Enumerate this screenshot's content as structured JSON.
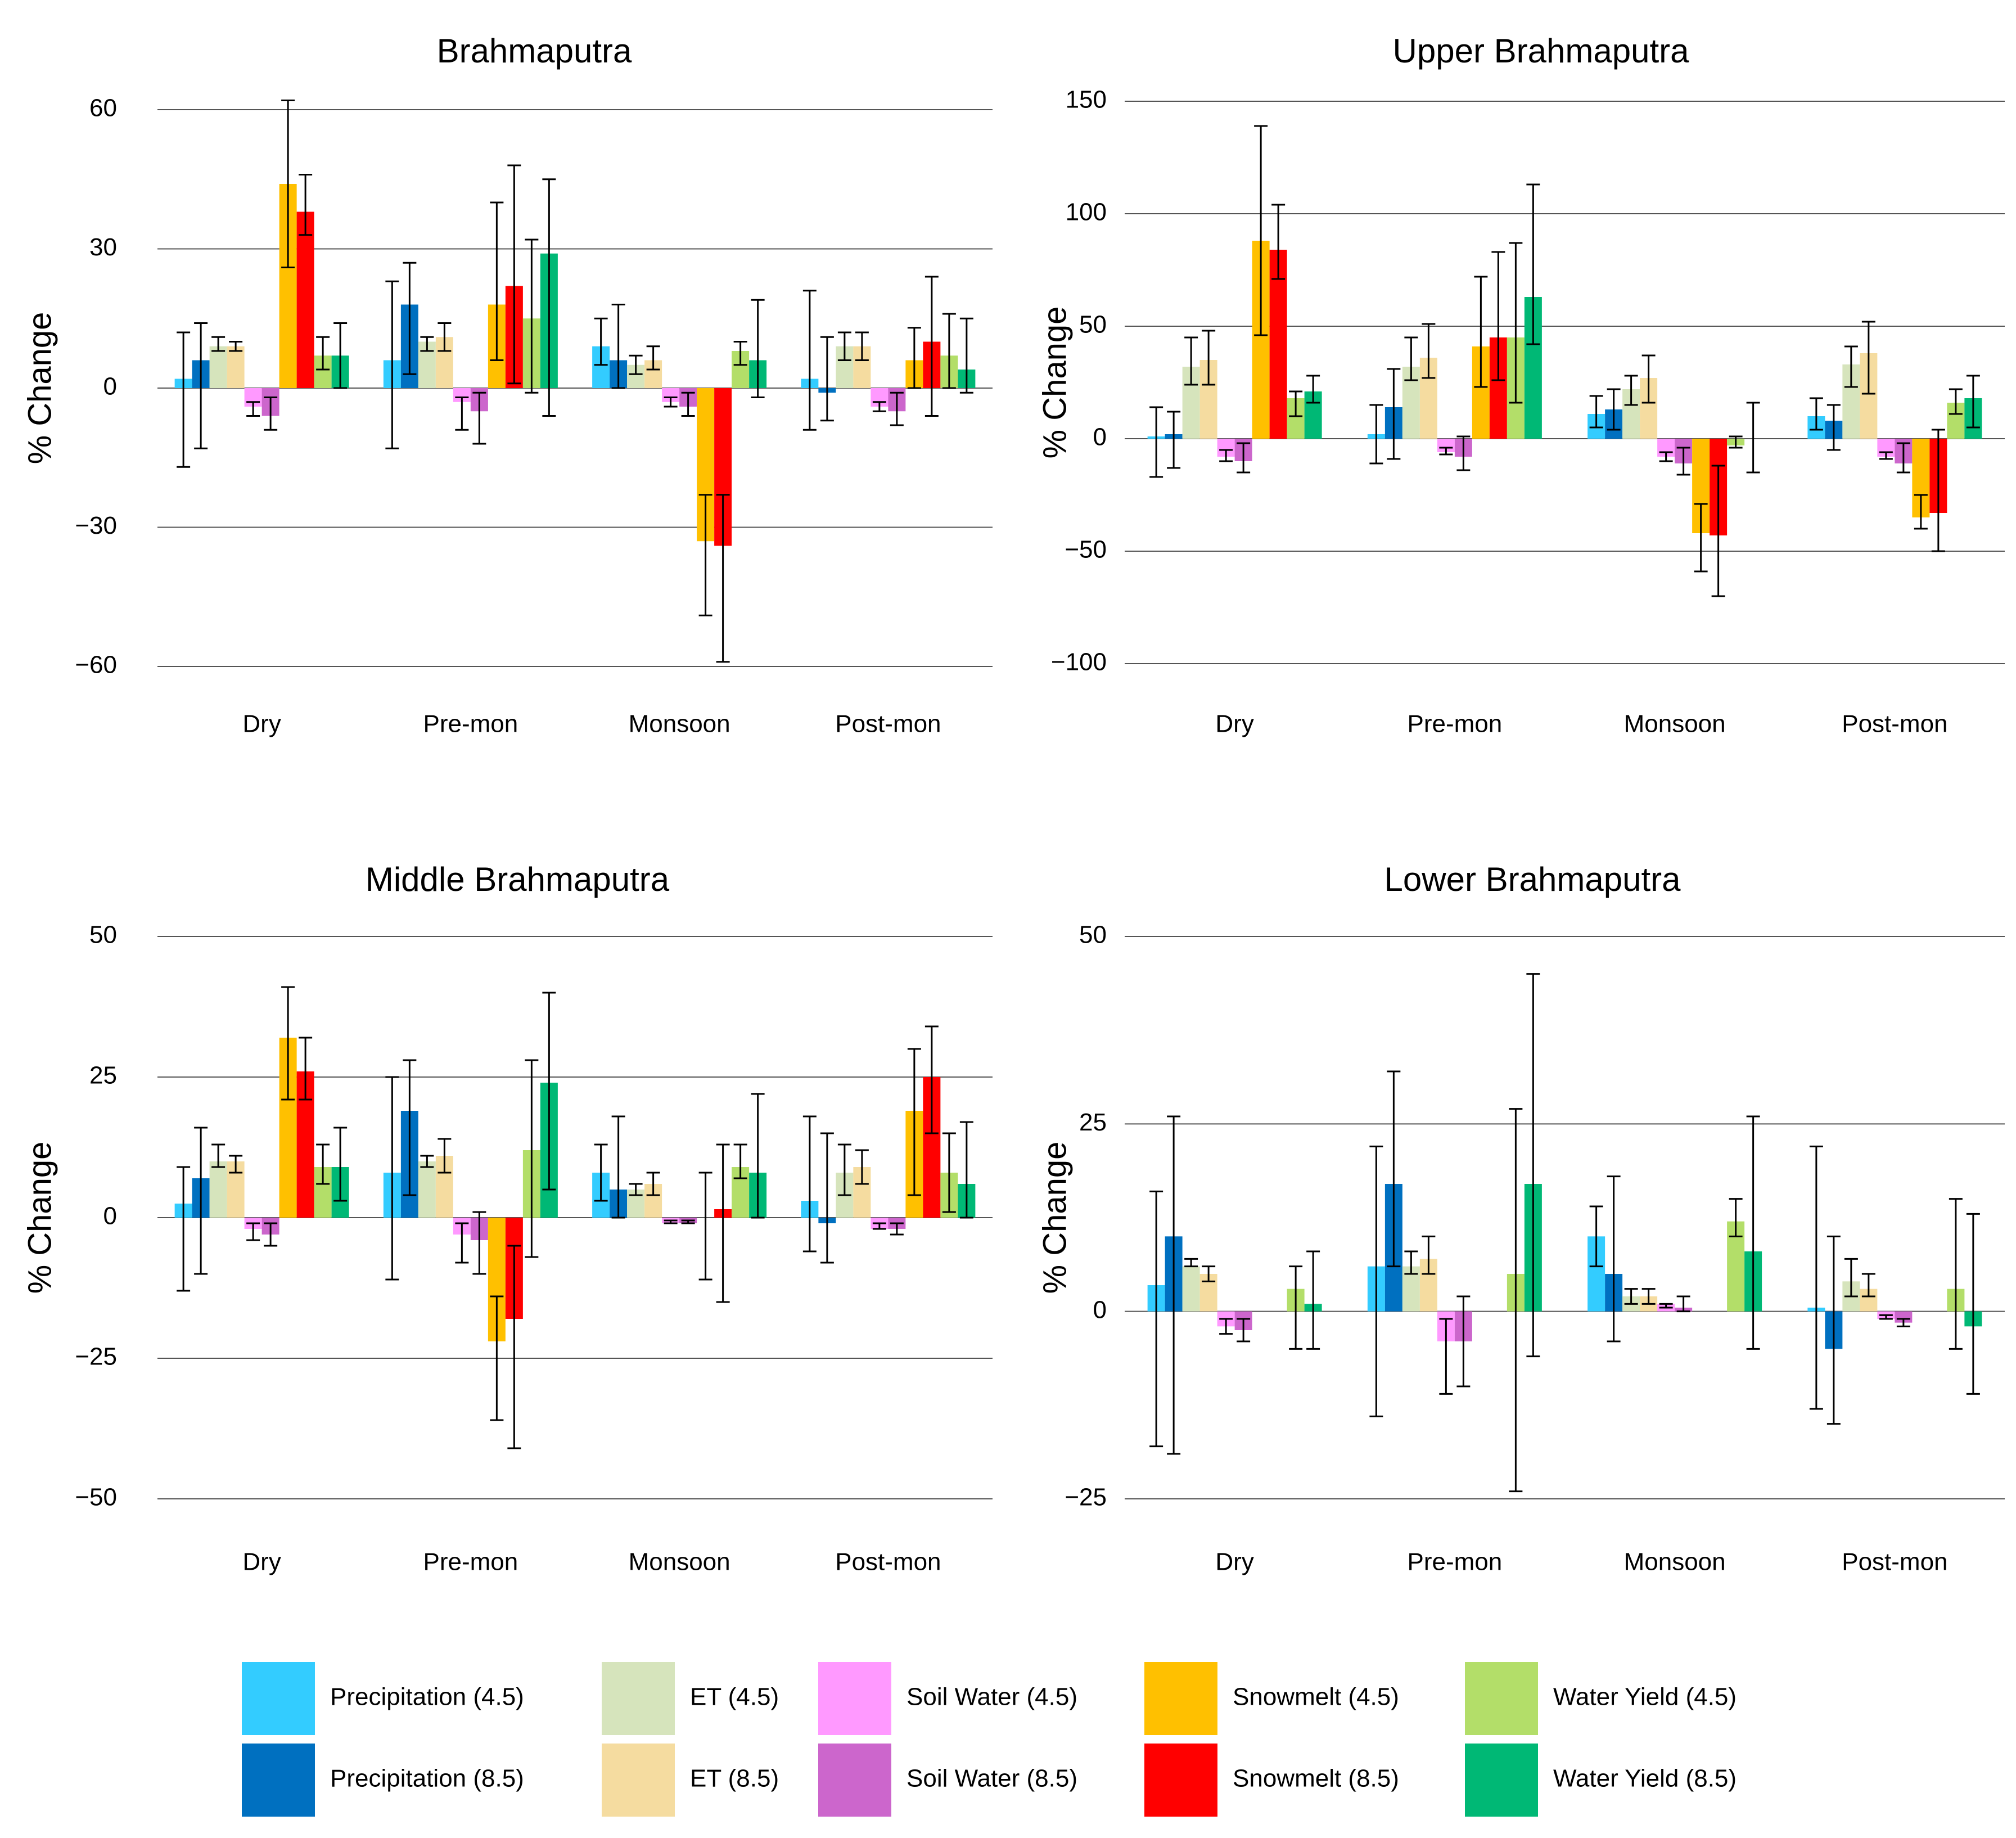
{
  "series_meta": [
    {
      "key": "precip45",
      "name": "Precipitation (4.5)",
      "color": "#33CCFF"
    },
    {
      "key": "precip85",
      "name": "Precipitation (8.5)",
      "color": "#0070C0"
    },
    {
      "key": "et45",
      "name": "ET (4.5)",
      "color": "#D6E4BC"
    },
    {
      "key": "et85",
      "name": "ET (8.5)",
      "color": "#F5DCA0"
    },
    {
      "key": "soil45",
      "name": "Soil Water (4.5)",
      "color": "#FF99FF"
    },
    {
      "key": "soil85",
      "name": "Soil Water (8.5)",
      "color": "#CC66CC"
    },
    {
      "key": "snow45",
      "name": "Snowmelt (4.5)",
      "color": "#FFC000"
    },
    {
      "key": "snow85",
      "name": "Snowmelt (8.5)",
      "color": "#FF0000"
    },
    {
      "key": "wy45",
      "name": "Water Yield (4.5)",
      "color": "#B3DE69"
    },
    {
      "key": "wy85",
      "name": "Water Yield (8.5)",
      "color": "#00B875"
    }
  ],
  "chart_data": [
    {
      "type": "bar",
      "title": "Brahmaputra",
      "ylabel": "% Change",
      "ylim": [
        -60,
        60
      ],
      "yticks": [
        -60,
        -30,
        0,
        30,
        60
      ],
      "ytick_labels": [
        "−60",
        "−30",
        "0",
        "30",
        "60"
      ],
      "categories": [
        "Dry",
        "Pre-mon",
        "Monsoon",
        "Post-mon"
      ],
      "series": [
        {
          "name": "Precipitation (4.5)",
          "values": [
            2,
            6,
            9,
            2
          ],
          "err_low": [
            -17,
            -13,
            5,
            -9
          ],
          "err_high": [
            12,
            23,
            15,
            21
          ]
        },
        {
          "name": "Precipitation (8.5)",
          "values": [
            6,
            18,
            6,
            -1
          ],
          "err_low": [
            -13,
            3,
            0,
            -7
          ],
          "err_high": [
            14,
            27,
            18,
            11
          ]
        },
        {
          "name": "ET (4.5)",
          "values": [
            9,
            10,
            5,
            9
          ],
          "err_low": [
            8,
            8,
            3,
            6
          ],
          "err_high": [
            11,
            11,
            7,
            12
          ]
        },
        {
          "name": "ET (8.5)",
          "values": [
            9,
            11,
            6,
            9
          ],
          "err_low": [
            8,
            8,
            4,
            6
          ],
          "err_high": [
            10,
            14,
            9,
            12
          ]
        },
        {
          "name": "Soil Water (4.5)",
          "values": [
            -4,
            -3,
            -3,
            -4
          ],
          "err_low": [
            -6,
            -9,
            -4,
            -5
          ],
          "err_high": [
            -3,
            -2,
            -2,
            -3
          ]
        },
        {
          "name": "Soil Water (8.5)",
          "values": [
            -6,
            -5,
            -4,
            -5
          ],
          "err_low": [
            -9,
            -12,
            -6,
            -8
          ],
          "err_high": [
            -2,
            -1,
            -1,
            -1
          ]
        },
        {
          "name": "Snowmelt (4.5)",
          "values": [
            44,
            18,
            -33,
            6
          ],
          "err_low": [
            26,
            6,
            -49,
            0
          ],
          "err_high": [
            62,
            40,
            -23,
            13
          ]
        },
        {
          "name": "Snowmelt (8.5)",
          "values": [
            38,
            22,
            -34,
            10
          ],
          "err_low": [
            33,
            1,
            -59,
            -6
          ],
          "err_high": [
            46,
            48,
            -23,
            24
          ]
        },
        {
          "name": "Water Yield (4.5)",
          "values": [
            7,
            15,
            8,
            7
          ],
          "err_low": [
            4,
            -1,
            5,
            0
          ],
          "err_high": [
            11,
            32,
            10,
            16
          ]
        },
        {
          "name": "Water Yield (8.5)",
          "values": [
            7,
            29,
            6,
            4
          ],
          "err_low": [
            0,
            -6,
            -2,
            -1
          ],
          "err_high": [
            14,
            45,
            19,
            15
          ]
        }
      ]
    },
    {
      "type": "bar",
      "title": "Upper Brahmaputra",
      "ylabel": "% Change",
      "ylim": [
        -100,
        150
      ],
      "yticks": [
        -100,
        -50,
        0,
        50,
        100,
        150
      ],
      "ytick_labels": [
        "−100",
        "−50",
        "0",
        "50",
        "100",
        "150"
      ],
      "categories": [
        "Dry",
        "Pre-mon",
        "Monsoon",
        "Post-mon"
      ],
      "series": [
        {
          "name": "Precipitation (4.5)",
          "values": [
            1,
            2,
            11,
            10
          ],
          "err_low": [
            -17,
            -11,
            5,
            4
          ],
          "err_high": [
            14,
            15,
            19,
            18
          ]
        },
        {
          "name": "Precipitation (8.5)",
          "values": [
            2,
            14,
            13,
            8
          ],
          "err_low": [
            -13,
            -9,
            4,
            -5
          ],
          "err_high": [
            12,
            31,
            22,
            15
          ]
        },
        {
          "name": "ET (4.5)",
          "values": [
            32,
            32,
            22,
            33
          ],
          "err_low": [
            24,
            26,
            15,
            23
          ],
          "err_high": [
            45,
            45,
            28,
            41
          ]
        },
        {
          "name": "ET (8.5)",
          "values": [
            35,
            36,
            27,
            38
          ],
          "err_low": [
            24,
            27,
            16,
            20
          ],
          "err_high": [
            48,
            51,
            37,
            52
          ]
        },
        {
          "name": "Soil Water (4.5)",
          "values": [
            -8,
            -6,
            -8,
            -8
          ],
          "err_low": [
            -10,
            -7,
            -10,
            -9
          ],
          "err_high": [
            -5,
            -4,
            -6,
            -6
          ]
        },
        {
          "name": "Soil Water (8.5)",
          "values": [
            -10,
            -8,
            -11,
            -11
          ],
          "err_low": [
            -15,
            -14,
            -16,
            -15
          ],
          "err_high": [
            -2,
            1,
            -4,
            -2
          ]
        },
        {
          "name": "Snowmelt (4.5)",
          "values": [
            88,
            41,
            -42,
            -35
          ],
          "err_low": [
            46,
            23,
            -59,
            -40
          ],
          "err_high": [
            139,
            72,
            -29,
            -25
          ]
        },
        {
          "name": "Snowmelt (8.5)",
          "values": [
            84,
            45,
            -43,
            -33
          ],
          "err_low": [
            71,
            26,
            -70,
            -50
          ],
          "err_high": [
            104,
            83,
            -12,
            4
          ]
        },
        {
          "name": "Water Yield (4.5)",
          "values": [
            18,
            45,
            -3,
            16
          ],
          "err_low": [
            10,
            16,
            -4,
            11
          ],
          "err_high": [
            21,
            87,
            1,
            22
          ]
        },
        {
          "name": "Water Yield (8.5)",
          "values": [
            21,
            63,
            0,
            18
          ],
          "err_low": [
            16,
            42,
            -15,
            5
          ],
          "err_high": [
            28,
            113,
            16,
            28
          ]
        }
      ]
    },
    {
      "type": "bar",
      "title": "Middle Brahmaputra",
      "ylabel": "% Change",
      "ylim": [
        -50,
        50
      ],
      "yticks": [
        -50,
        -25,
        0,
        25,
        50
      ],
      "ytick_labels": [
        "−50",
        "−25",
        "0",
        "25",
        "50"
      ],
      "categories": [
        "Dry",
        "Pre-mon",
        "Monsoon",
        "Post-mon"
      ],
      "series": [
        {
          "name": "Precipitation (4.5)",
          "values": [
            2.5,
            8,
            8,
            3
          ],
          "err_low": [
            -13,
            -11,
            3,
            -6
          ],
          "err_high": [
            9,
            25,
            13,
            18
          ]
        },
        {
          "name": "Precipitation (8.5)",
          "values": [
            7,
            19,
            5,
            -1
          ],
          "err_low": [
            -10,
            4,
            0,
            -8
          ],
          "err_high": [
            16,
            28,
            18,
            15
          ]
        },
        {
          "name": "ET (4.5)",
          "values": [
            10,
            10,
            5,
            8
          ],
          "err_low": [
            9,
            9,
            4,
            4
          ],
          "err_high": [
            13,
            11,
            6,
            13
          ]
        },
        {
          "name": "ET (8.5)",
          "values": [
            10,
            11,
            6,
            9
          ],
          "err_low": [
            8,
            8,
            4,
            6
          ],
          "err_high": [
            11,
            14,
            8,
            12
          ]
        },
        {
          "name": "Soil Water (4.5)",
          "values": [
            -2,
            -3,
            -1,
            -2
          ],
          "err_low": [
            -4,
            -8,
            -1,
            -2
          ],
          "err_high": [
            -1,
            -1,
            -0.5,
            -1
          ]
        },
        {
          "name": "Soil Water (8.5)",
          "values": [
            -3,
            -4,
            -1,
            -2
          ],
          "err_low": [
            -5,
            -10,
            -1,
            -3
          ],
          "err_high": [
            -1,
            1,
            -0.5,
            -1
          ]
        },
        {
          "name": "Snowmelt (4.5)",
          "values": [
            32,
            -22,
            0,
            19
          ],
          "err_low": [
            21,
            -36,
            -11,
            4
          ],
          "err_high": [
            41,
            -14,
            8,
            30
          ]
        },
        {
          "name": "Snowmelt (8.5)",
          "values": [
            26,
            -18,
            1.5,
            25
          ],
          "err_low": [
            21,
            -41,
            -15,
            15
          ],
          "err_high": [
            32,
            -5,
            13,
            34
          ]
        },
        {
          "name": "Water Yield (4.5)",
          "values": [
            9,
            12,
            9,
            8
          ],
          "err_low": [
            6,
            -7,
            7,
            1
          ],
          "err_high": [
            13,
            28,
            13,
            15
          ]
        },
        {
          "name": "Water Yield (8.5)",
          "values": [
            9,
            24,
            8,
            6
          ],
          "err_low": [
            3,
            5,
            0,
            0
          ],
          "err_high": [
            16,
            40,
            22,
            17
          ]
        }
      ]
    },
    {
      "type": "bar",
      "title": "Lower Brahmaputra",
      "ylabel": "% Change",
      "ylim": [
        -25,
        50
      ],
      "yticks": [
        -25,
        0,
        25,
        50
      ],
      "ytick_labels": [
        "−25",
        "0",
        "25",
        "50"
      ],
      "categories": [
        "Dry",
        "Pre-mon",
        "Monsoon",
        "Post-mon"
      ],
      "series": [
        {
          "name": "Precipitation (4.5)",
          "values": [
            3.5,
            6,
            10,
            0.5
          ],
          "err_low": [
            -18,
            -14,
            6,
            -13
          ],
          "err_high": [
            16,
            22,
            14,
            22
          ]
        },
        {
          "name": "Precipitation (8.5)",
          "values": [
            10,
            17,
            5,
            -5
          ],
          "err_low": [
            -19,
            6,
            -4,
            -15
          ],
          "err_high": [
            26,
            32,
            18,
            10
          ]
        },
        {
          "name": "ET (4.5)",
          "values": [
            6,
            6,
            2,
            4
          ],
          "err_low": [
            6,
            5,
            1,
            2
          ],
          "err_high": [
            7,
            8,
            3,
            7
          ]
        },
        {
          "name": "ET (8.5)",
          "values": [
            5,
            7,
            2,
            3
          ],
          "err_low": [
            4,
            5,
            1,
            2
          ],
          "err_high": [
            6,
            10,
            3,
            5
          ]
        },
        {
          "name": "Soil Water (4.5)",
          "values": [
            -2,
            -4,
            1,
            -1
          ],
          "err_low": [
            -3,
            -11,
            0.5,
            -1
          ],
          "err_high": [
            -1,
            -1,
            1,
            -0.5
          ]
        },
        {
          "name": "Soil Water (8.5)",
          "values": [
            -2.5,
            -4,
            0.5,
            -1.5
          ],
          "err_low": [
            -4,
            -10,
            0,
            -2
          ],
          "err_high": [
            -1,
            2,
            2,
            -1
          ]
        },
        {
          "name": "Snowmelt (4.5)",
          "values": [
            0,
            0,
            0,
            0
          ],
          "err_low": [
            0,
            0,
            0,
            0
          ],
          "err_high": [
            0,
            0,
            0,
            0
          ]
        },
        {
          "name": "Snowmelt (8.5)",
          "values": [
            0,
            0,
            0,
            0
          ],
          "err_low": [
            0,
            0,
            0,
            0
          ],
          "err_high": [
            0,
            0,
            0,
            0
          ]
        },
        {
          "name": "Water Yield (4.5)",
          "values": [
            3,
            5,
            12,
            3
          ],
          "err_low": [
            -5,
            -24,
            10,
            -5
          ],
          "err_high": [
            6,
            27,
            15,
            15
          ]
        },
        {
          "name": "Water Yield (8.5)",
          "values": [
            1,
            17,
            8,
            -2
          ],
          "err_low": [
            -5,
            -6,
            -5,
            -11
          ],
          "err_high": [
            8,
            45,
            26,
            13
          ]
        }
      ]
    }
  ]
}
